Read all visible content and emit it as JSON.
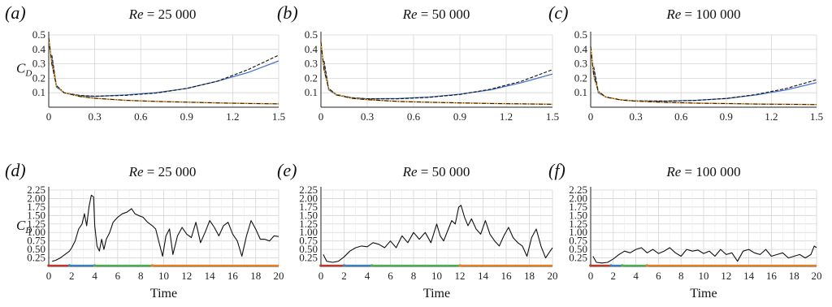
{
  "chart_data": [
    {
      "panel": "(a)",
      "title_prefix": "Re",
      "title_value": " = 25 000",
      "type": "line",
      "ylabel": "C",
      "ylabel_sub": "D",
      "xlabel": "",
      "xlim": [
        0,
        1.5
      ],
      "ylim": [
        0,
        0.5
      ],
      "xticks": [
        "0",
        "0.3",
        "0.6",
        "0.9",
        "1.2",
        "1.5"
      ],
      "yticks": [
        "0.1",
        "0.2",
        "0.3",
        "0.4",
        "0.5"
      ],
      "grid": true,
      "colors": {
        "blue": "#4a74c9",
        "dashed": "#111111",
        "orange": "#e8a23a",
        "dashdot": "#111111"
      },
      "series": [
        {
          "style": "blue",
          "x": [
            0.02,
            0.05,
            0.1,
            0.2,
            0.3,
            0.5,
            0.7,
            0.9,
            1.1,
            1.3,
            1.5
          ],
          "y": [
            0.34,
            0.14,
            0.1,
            0.08,
            0.075,
            0.085,
            0.1,
            0.13,
            0.18,
            0.24,
            0.32
          ]
        },
        {
          "style": "dashed",
          "x": [
            0.02,
            0.05,
            0.1,
            0.2,
            0.3,
            0.5,
            0.7,
            0.9,
            1.1,
            1.3,
            1.5
          ],
          "y": [
            0.36,
            0.15,
            0.1,
            0.082,
            0.076,
            0.082,
            0.098,
            0.13,
            0.18,
            0.26,
            0.36
          ]
        },
        {
          "style": "orange",
          "x": [
            0.0,
            0.02,
            0.05,
            0.1,
            0.2,
            0.3,
            0.5,
            0.7,
            0.9,
            1.1,
            1.3,
            1.5
          ],
          "y": [
            0.48,
            0.3,
            0.15,
            0.1,
            0.075,
            0.062,
            0.048,
            0.04,
            0.035,
            0.03,
            0.026,
            0.023
          ]
        },
        {
          "style": "dashdot",
          "x": [
            0.0,
            0.02,
            0.05,
            0.1,
            0.2,
            0.3,
            0.5,
            0.7,
            0.9,
            1.1,
            1.3,
            1.5
          ],
          "y": [
            0.48,
            0.3,
            0.15,
            0.1,
            0.075,
            0.062,
            0.048,
            0.04,
            0.035,
            0.03,
            0.026,
            0.023
          ]
        }
      ]
    },
    {
      "panel": "(b)",
      "title_prefix": "Re",
      "title_value": " = 50 000",
      "type": "line",
      "ylabel": "",
      "ylabel_sub": "",
      "xlabel": "",
      "xlim": [
        0,
        1.5
      ],
      "ylim": [
        0,
        0.5
      ],
      "xticks": [
        "0",
        "0.3",
        "0.6",
        "0.9",
        "1.2",
        "1.5"
      ],
      "yticks": [
        "0.1",
        "0.2",
        "0.3",
        "0.4",
        "0.5"
      ],
      "grid": true,
      "series": [
        {
          "style": "blue",
          "x": [
            0.02,
            0.05,
            0.1,
            0.2,
            0.3,
            0.5,
            0.7,
            0.9,
            1.1,
            1.3,
            1.5
          ],
          "y": [
            0.3,
            0.12,
            0.085,
            0.065,
            0.058,
            0.06,
            0.07,
            0.09,
            0.12,
            0.17,
            0.23
          ]
        },
        {
          "style": "dashed",
          "x": [
            0.02,
            0.05,
            0.1,
            0.2,
            0.3,
            0.5,
            0.7,
            0.9,
            1.1,
            1.3,
            1.5
          ],
          "y": [
            0.32,
            0.13,
            0.088,
            0.066,
            0.058,
            0.058,
            0.068,
            0.088,
            0.125,
            0.18,
            0.26
          ]
        },
        {
          "style": "orange",
          "x": [
            0.0,
            0.02,
            0.05,
            0.1,
            0.2,
            0.3,
            0.5,
            0.7,
            0.9,
            1.1,
            1.3,
            1.5
          ],
          "y": [
            0.45,
            0.26,
            0.13,
            0.085,
            0.062,
            0.052,
            0.04,
            0.034,
            0.03,
            0.026,
            0.023,
            0.02
          ]
        },
        {
          "style": "dashdot",
          "x": [
            0.0,
            0.02,
            0.05,
            0.1,
            0.2,
            0.3,
            0.5,
            0.7,
            0.9,
            1.1,
            1.3,
            1.5
          ],
          "y": [
            0.45,
            0.26,
            0.13,
            0.085,
            0.062,
            0.052,
            0.04,
            0.034,
            0.03,
            0.026,
            0.023,
            0.02
          ]
        }
      ]
    },
    {
      "panel": "(c)",
      "title_prefix": "Re",
      "title_value": " = 100 000",
      "type": "line",
      "ylabel": "",
      "ylabel_sub": "",
      "xlabel": "",
      "xlim": [
        0,
        1.5
      ],
      "ylim": [
        0,
        0.5
      ],
      "xticks": [
        "0",
        "0.3",
        "0.6",
        "0.9",
        "1.2",
        "1.5"
      ],
      "yticks": [
        "0.1",
        "0.2",
        "0.3",
        "0.4",
        "0.5"
      ],
      "grid": true,
      "series": [
        {
          "style": "blue",
          "x": [
            0.02,
            0.05,
            0.1,
            0.2,
            0.3,
            0.5,
            0.7,
            0.9,
            1.1,
            1.3,
            1.5
          ],
          "y": [
            0.26,
            0.1,
            0.07,
            0.05,
            0.043,
            0.042,
            0.048,
            0.06,
            0.085,
            0.12,
            0.17
          ]
        },
        {
          "style": "dashed",
          "x": [
            0.02,
            0.05,
            0.1,
            0.2,
            0.3,
            0.5,
            0.7,
            0.9,
            1.1,
            1.3,
            1.5
          ],
          "y": [
            0.28,
            0.11,
            0.072,
            0.052,
            0.044,
            0.042,
            0.047,
            0.06,
            0.088,
            0.13,
            0.19
          ]
        },
        {
          "style": "orange",
          "x": [
            0.0,
            0.02,
            0.05,
            0.1,
            0.2,
            0.3,
            0.5,
            0.7,
            0.9,
            1.1,
            1.3,
            1.5
          ],
          "y": [
            0.42,
            0.22,
            0.11,
            0.07,
            0.05,
            0.042,
            0.033,
            0.028,
            0.025,
            0.022,
            0.02,
            0.018
          ]
        },
        {
          "style": "dashdot",
          "x": [
            0.0,
            0.02,
            0.05,
            0.1,
            0.2,
            0.3,
            0.5,
            0.7,
            0.9,
            1.1,
            1.3,
            1.5
          ],
          "y": [
            0.42,
            0.22,
            0.11,
            0.07,
            0.05,
            0.042,
            0.033,
            0.028,
            0.025,
            0.022,
            0.02,
            0.018
          ]
        }
      ]
    },
    {
      "panel": "(d)",
      "title_prefix": "Re",
      "title_value": " = 25 000",
      "type": "line",
      "ylabel": "C",
      "ylabel_sub": "D",
      "xlabel": "Time",
      "xlim": [
        0,
        20
      ],
      "ylim": [
        0,
        2.25
      ],
      "xticks": [
        "0",
        "2",
        "4",
        "6",
        "8",
        "10",
        "12",
        "14",
        "16",
        "18",
        "20"
      ],
      "yticks": [
        "0.25",
        "0.50",
        "0.75",
        "1.00",
        "1.25",
        "1.50",
        "1.75",
        "2.00",
        "2.25"
      ],
      "grid": true,
      "segments": [
        {
          "from": 0,
          "to": 1.8,
          "color": "#c0392b"
        },
        {
          "from": 1.8,
          "to": 4.0,
          "color": "#3b7fc4"
        },
        {
          "from": 4.0,
          "to": 9.0,
          "color": "#4caf50"
        },
        {
          "from": 9.0,
          "to": 20,
          "color": "#e67e22"
        }
      ],
      "series": [
        {
          "style": "black",
          "x": [
            0.3,
            0.6,
            1.0,
            1.4,
            1.8,
            2.0,
            2.3,
            2.6,
            2.9,
            3.1,
            3.3,
            3.5,
            3.7,
            3.9,
            4.0,
            4.2,
            4.4,
            4.6,
            4.8,
            5.0,
            5.3,
            5.6,
            6.0,
            6.4,
            6.8,
            7.2,
            7.5,
            7.8,
            8.2,
            8.6,
            9.0,
            9.3,
            9.6,
            9.9,
            10.2,
            10.5,
            10.8,
            11.2,
            11.6,
            12.0,
            12.4,
            12.8,
            13.2,
            13.6,
            14.0,
            14.4,
            14.8,
            15.2,
            15.6,
            16.0,
            16.4,
            16.8,
            17.2,
            17.6,
            18.0,
            18.4,
            18.8,
            19.2,
            19.6,
            20.0
          ],
          "y": [
            0.15,
            0.18,
            0.25,
            0.35,
            0.45,
            0.55,
            0.75,
            1.1,
            1.25,
            1.55,
            1.2,
            1.75,
            2.1,
            2.05,
            1.2,
            0.6,
            0.45,
            0.8,
            0.5,
            0.8,
            1.0,
            1.3,
            1.45,
            1.55,
            1.6,
            1.7,
            1.55,
            1.5,
            1.45,
            1.3,
            1.2,
            1.1,
            0.7,
            0.3,
            0.9,
            1.1,
            0.35,
            0.9,
            1.15,
            0.95,
            0.85,
            1.3,
            0.7,
            1.0,
            1.35,
            1.15,
            0.9,
            1.2,
            1.3,
            0.95,
            0.75,
            0.3,
            0.9,
            1.35,
            1.1,
            0.8,
            0.8,
            0.75,
            0.9,
            0.88
          ]
        }
      ]
    },
    {
      "panel": "(e)",
      "title_prefix": "Re",
      "title_value": " = 50 000",
      "type": "line",
      "ylabel": "",
      "ylabel_sub": "",
      "xlabel": "Time",
      "xlim": [
        0,
        20
      ],
      "ylim": [
        0,
        2.25
      ],
      "xticks": [
        "0",
        "2",
        "4",
        "6",
        "8",
        "10",
        "12",
        "14",
        "16",
        "18",
        "20"
      ],
      "yticks": [
        "0.25",
        "0.50",
        "0.75",
        "1.00",
        "1.25",
        "1.50",
        "1.75",
        "2.00",
        "2.25"
      ],
      "grid": true,
      "segments": [
        {
          "from": 0,
          "to": 2.0,
          "color": "#c0392b"
        },
        {
          "from": 2.0,
          "to": 4.4,
          "color": "#3b7fc4"
        },
        {
          "from": 4.4,
          "to": 12.0,
          "color": "#4caf50"
        },
        {
          "from": 12.0,
          "to": 20,
          "color": "#e67e22"
        }
      ],
      "series": [
        {
          "style": "black",
          "x": [
            0.2,
            0.5,
            1.0,
            1.5,
            2.0,
            2.5,
            3.0,
            3.5,
            4.0,
            4.5,
            5.0,
            5.5,
            6.0,
            6.5,
            7.0,
            7.5,
            8.0,
            8.5,
            9.0,
            9.5,
            10.0,
            10.3,
            10.6,
            11.0,
            11.3,
            11.6,
            11.9,
            12.1,
            12.4,
            12.7,
            13.0,
            13.4,
            13.8,
            14.2,
            14.6,
            15.0,
            15.4,
            15.8,
            16.2,
            16.6,
            17.0,
            17.4,
            17.8,
            18.2,
            18.6,
            19.0,
            19.4,
            19.8,
            20.0
          ],
          "y": [
            0.35,
            0.15,
            0.12,
            0.15,
            0.28,
            0.45,
            0.55,
            0.6,
            0.58,
            0.7,
            0.65,
            0.55,
            0.75,
            0.55,
            0.9,
            0.7,
            1.0,
            0.8,
            1.0,
            0.7,
            1.25,
            0.9,
            0.75,
            1.1,
            1.35,
            1.25,
            1.75,
            1.8,
            1.45,
            1.2,
            1.4,
            1.1,
            0.95,
            1.35,
            0.95,
            0.75,
            0.6,
            0.9,
            1.15,
            0.85,
            0.7,
            0.6,
            0.3,
            0.85,
            1.1,
            0.6,
            0.25,
            0.45,
            0.55
          ]
        }
      ]
    },
    {
      "panel": "(f)",
      "title_prefix": "Re",
      "title_value": " = 100 000",
      "type": "line",
      "ylabel": "",
      "ylabel_sub": "",
      "xlabel": "Time",
      "xlim": [
        0,
        20
      ],
      "ylim": [
        0,
        2.25
      ],
      "xticks": [
        "0",
        "2",
        "4",
        "6",
        "8",
        "10",
        "12",
        "14",
        "16",
        "18",
        "20"
      ],
      "yticks": [
        "0.25",
        "0.50",
        "0.75",
        "1.00",
        "1.25",
        "1.50",
        "1.75",
        "2.00",
        "2.25"
      ],
      "grid": true,
      "segments": [
        {
          "from": 0,
          "to": 1.8,
          "color": "#c0392b"
        },
        {
          "from": 1.8,
          "to": 2.8,
          "color": "#3b7fc4"
        },
        {
          "from": 2.8,
          "to": 5.0,
          "color": "#4caf50"
        },
        {
          "from": 5.0,
          "to": 20,
          "color": "#e67e22"
        }
      ],
      "series": [
        {
          "style": "black",
          "x": [
            0.2,
            0.5,
            1.0,
            1.5,
            2.0,
            2.5,
            3.0,
            3.5,
            4.0,
            4.5,
            5.0,
            5.5,
            6.0,
            6.5,
            7.0,
            7.5,
            8.0,
            8.5,
            9.0,
            9.5,
            10.0,
            10.5,
            11.0,
            11.5,
            12.0,
            12.5,
            13.0,
            13.5,
            14.0,
            14.5,
            15.0,
            15.5,
            16.0,
            16.5,
            17.0,
            17.5,
            18.0,
            18.5,
            19.0,
            19.5,
            19.8,
            20.0
          ],
          "y": [
            0.3,
            0.12,
            0.1,
            0.12,
            0.22,
            0.35,
            0.45,
            0.4,
            0.5,
            0.55,
            0.4,
            0.5,
            0.38,
            0.45,
            0.55,
            0.4,
            0.3,
            0.5,
            0.45,
            0.48,
            0.38,
            0.45,
            0.3,
            0.5,
            0.35,
            0.4,
            0.15,
            0.45,
            0.5,
            0.4,
            0.35,
            0.5,
            0.3,
            0.35,
            0.4,
            0.25,
            0.3,
            0.35,
            0.25,
            0.35,
            0.6,
            0.55
          ]
        }
      ]
    }
  ]
}
